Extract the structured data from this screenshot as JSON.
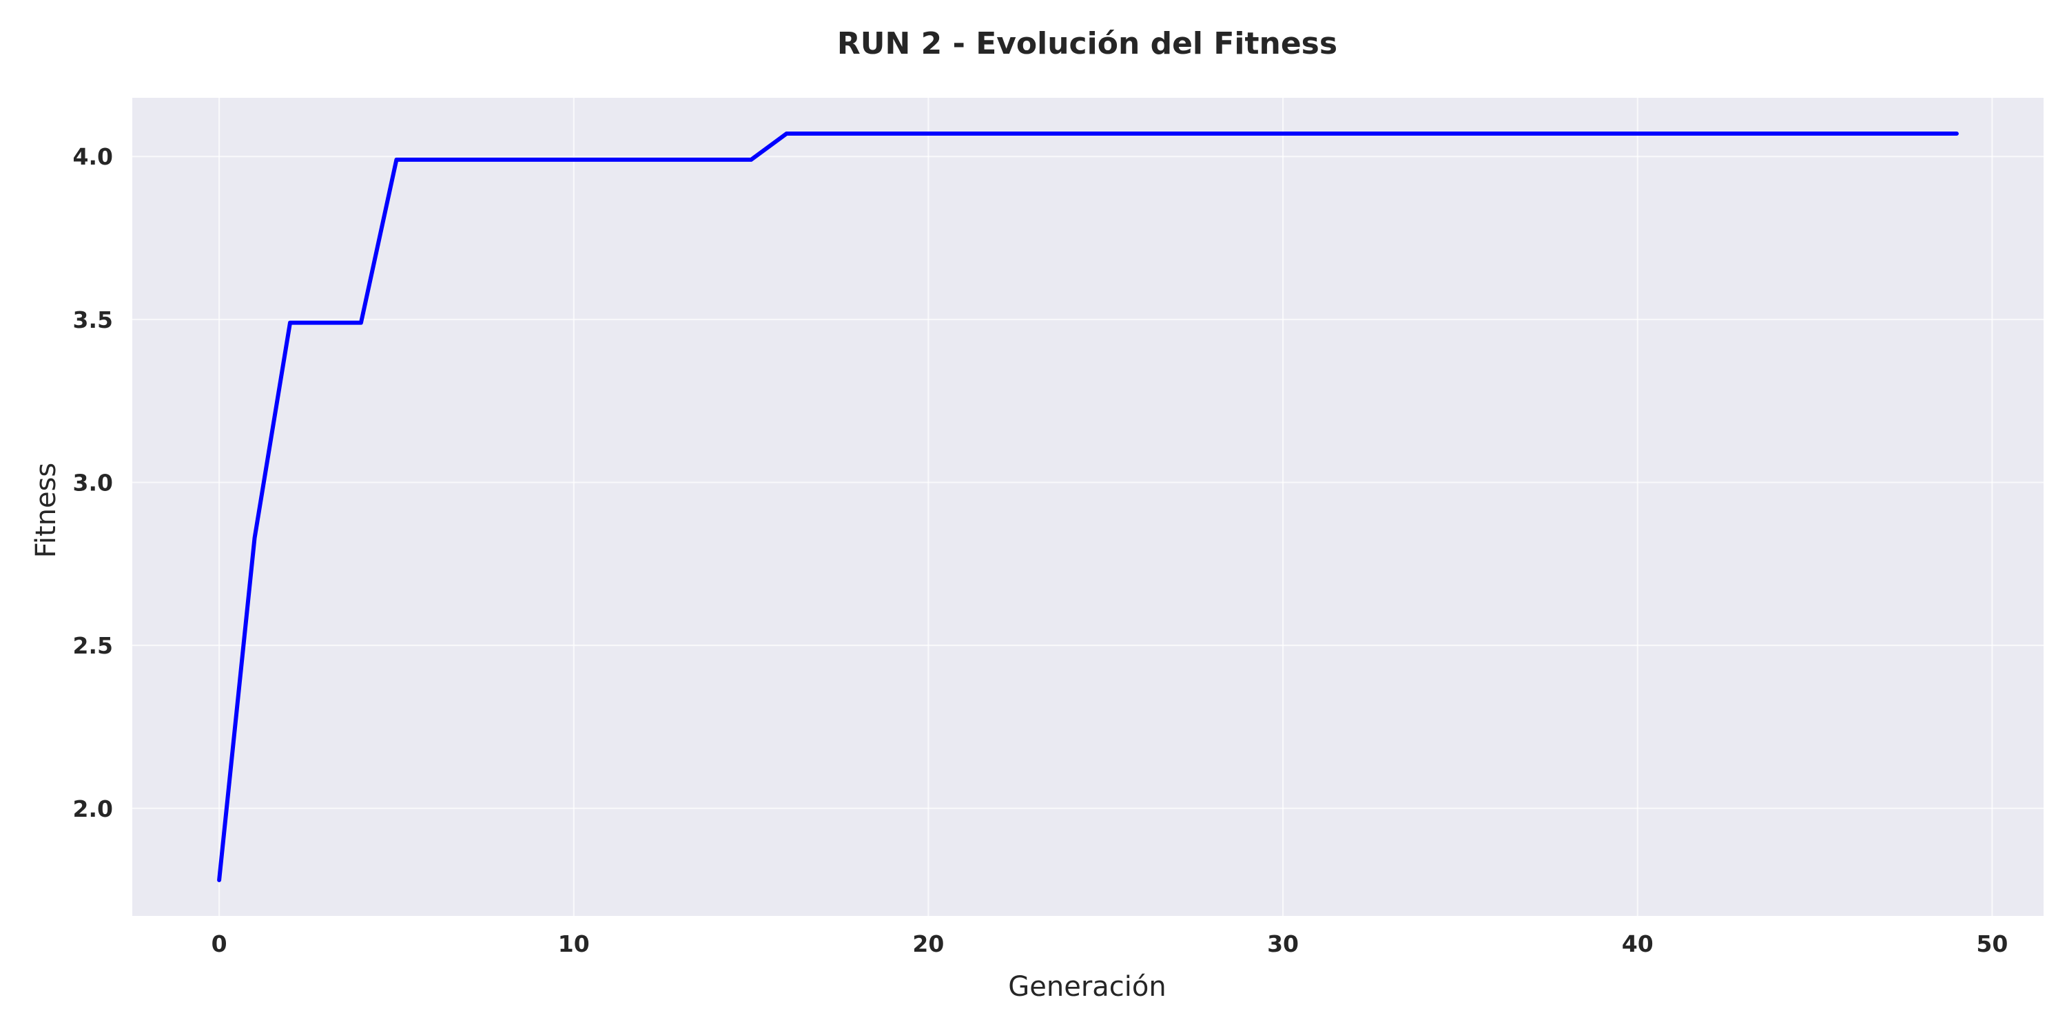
{
  "chart_data": {
    "type": "line",
    "title": "RUN 2 - Evolución del Fitness",
    "xlabel": "Generación",
    "ylabel": "Fitness",
    "xlim": [
      -2.45,
      51.45
    ],
    "ylim": [
      1.67,
      4.18
    ],
    "xticks": [
      0,
      10,
      20,
      30,
      40,
      50
    ],
    "xtick_labels": [
      "0",
      "10",
      "20",
      "30",
      "40",
      "50"
    ],
    "yticks": [
      2.0,
      2.5,
      3.0,
      3.5,
      4.0
    ],
    "ytick_labels": [
      "2.0",
      "2.5",
      "3.0",
      "3.5",
      "4.0"
    ],
    "grid": true,
    "legend": "none",
    "colors": {
      "plot_background": "#eaeaf2",
      "grid": "#ffffff",
      "text": "#262626"
    },
    "series": [
      {
        "color": "#0000ff",
        "x": [
          0,
          1,
          2,
          3,
          4,
          5,
          6,
          7,
          8,
          9,
          10,
          11,
          12,
          13,
          14,
          15,
          16,
          17,
          18,
          19,
          20,
          21,
          22,
          23,
          24,
          25,
          26,
          27,
          28,
          29,
          30,
          31,
          32,
          33,
          34,
          35,
          36,
          37,
          38,
          39,
          40,
          41,
          42,
          43,
          44,
          45,
          46,
          47,
          48,
          49
        ],
        "values": [
          1.78,
          2.83,
          3.49,
          3.49,
          3.49,
          3.99,
          3.99,
          3.99,
          3.99,
          3.99,
          3.99,
          3.99,
          3.99,
          3.99,
          3.99,
          3.99,
          4.07,
          4.07,
          4.07,
          4.07,
          4.07,
          4.07,
          4.07,
          4.07,
          4.07,
          4.07,
          4.07,
          4.07,
          4.07,
          4.07,
          4.07,
          4.07,
          4.07,
          4.07,
          4.07,
          4.07,
          4.07,
          4.07,
          4.07,
          4.07,
          4.07,
          4.07,
          4.07,
          4.07,
          4.07,
          4.07,
          4.07,
          4.07,
          4.07,
          4.07
        ]
      }
    ]
  }
}
